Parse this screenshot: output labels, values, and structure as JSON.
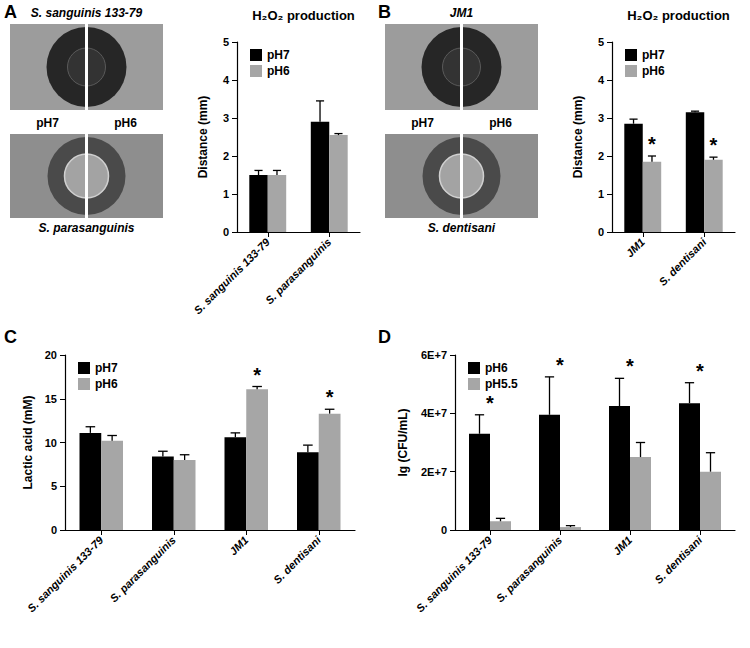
{
  "chart_data": [
    {
      "type": "bar",
      "panel": "A",
      "title": "H₂O₂ production",
      "ylabel": "Distance (mm)",
      "categories": [
        "S. sanguinis 133-79",
        "S. parasanguinis"
      ],
      "series": [
        {
          "name": "pH7",
          "color": "#000000",
          "values": [
            1.5,
            2.9
          ],
          "errors": [
            0.12,
            0.55
          ]
        },
        {
          "name": "pH6",
          "color": "#a6a6a6",
          "values": [
            1.5,
            2.55
          ],
          "errors": [
            0.12,
            0.04
          ]
        }
      ],
      "ylim": [
        0,
        5
      ],
      "yticks": [
        0,
        1,
        2,
        3,
        4,
        5
      ],
      "grid": false,
      "legend": "upper left",
      "annotations": [],
      "plates": {
        "top_label": "S. sanguinis 133-79",
        "bottom_label": "S. parasanguinis",
        "left_label": "pH7",
        "right_label": "pH6"
      }
    },
    {
      "type": "bar",
      "panel": "B",
      "title": "H₂O₂ production",
      "ylabel": "Distance (mm)",
      "categories": [
        "JM1",
        "S. dentisani"
      ],
      "series": [
        {
          "name": "pH7",
          "color": "#000000",
          "values": [
            2.85,
            3.15
          ],
          "errors": [
            0.12,
            0.03
          ]
        },
        {
          "name": "pH6",
          "color": "#a6a6a6",
          "values": [
            1.85,
            1.9
          ],
          "errors": [
            0.15,
            0.07
          ]
        }
      ],
      "ylim": [
        0,
        5
      ],
      "yticks": [
        0,
        1,
        2,
        3,
        4,
        5
      ],
      "grid": false,
      "legend": "upper left",
      "annotations": [
        {
          "text": "*",
          "category": "JM1",
          "series": "pH6"
        },
        {
          "text": "*",
          "category": "S. dentisani",
          "series": "pH6"
        }
      ],
      "plates": {
        "top_label": "JM1",
        "bottom_label": "S. dentisani",
        "left_label": "pH7",
        "right_label": "pH6"
      }
    },
    {
      "type": "bar",
      "panel": "C",
      "ylabel": "Lactic acid (mM)",
      "categories": [
        "S. sanguinis 133-79",
        "S. parasanguinis",
        "JM1",
        "S. dentisani"
      ],
      "series": [
        {
          "name": "pH7",
          "color": "#000000",
          "values": [
            11.1,
            8.4,
            10.6,
            8.9
          ],
          "errors": [
            0.7,
            0.6,
            0.5,
            0.8
          ]
        },
        {
          "name": "pH6",
          "color": "#a6a6a6",
          "values": [
            10.2,
            8.0,
            16.1,
            13.3
          ],
          "errors": [
            0.6,
            0.6,
            0.3,
            0.5
          ]
        }
      ],
      "ylim": [
        0,
        20
      ],
      "yticks": [
        0,
        5,
        10,
        15,
        20
      ],
      "grid": false,
      "legend": "upper left",
      "annotations": [
        {
          "text": "*",
          "category": "JM1",
          "series": "pH6"
        },
        {
          "text": "*",
          "category": "S. dentisani",
          "series": "pH6"
        }
      ]
    },
    {
      "type": "bar",
      "panel": "D",
      "ylabel": "lg (CFU/mL)",
      "categories": [
        "S. sanguinis 133-79",
        "S. parasanguinis",
        "JM1",
        "S. dentisani"
      ],
      "series": [
        {
          "name": "pH6",
          "color": "#000000",
          "values": [
            33000000,
            39500000,
            42500000,
            43500000
          ],
          "errors": [
            6500000,
            13000000,
            9500000,
            7000000
          ]
        },
        {
          "name": "pH5.5",
          "color": "#a6a6a6",
          "values": [
            3000000,
            1000000,
            25000000,
            20000000
          ],
          "errors": [
            1000000,
            500000,
            5000000,
            6500000
          ]
        }
      ],
      "ylim": [
        0,
        60000000
      ],
      "yticks": [
        0,
        {
          "value": 20000000,
          "label": "2E+7"
        },
        {
          "value": 40000000,
          "label": "4E+7"
        },
        {
          "value": 60000000,
          "label": "6E+7"
        }
      ],
      "grid": false,
      "legend": "upper left",
      "annotations": [
        {
          "text": "*",
          "category": "S. sanguinis 133-79"
        },
        {
          "text": "*",
          "category": "S. parasanguinis"
        },
        {
          "text": "*",
          "category": "JM1"
        },
        {
          "text": "*",
          "category": "S. dentisani"
        }
      ]
    }
  ]
}
